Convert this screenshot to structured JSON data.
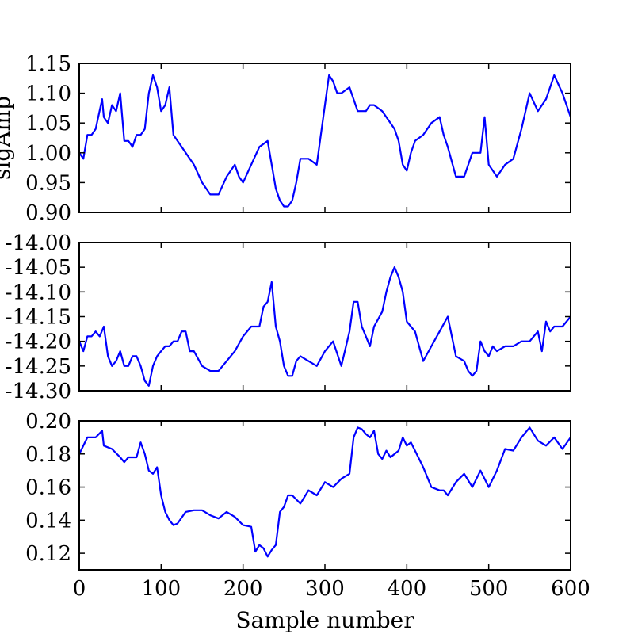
{
  "chart_data": [
    {
      "type": "line",
      "ylabel": "sigAmp",
      "xlabel": "",
      "xlim": [
        0,
        600
      ],
      "ylim": [
        0.9,
        1.15
      ],
      "x_ticks": [
        0,
        100,
        200,
        300,
        400,
        500,
        600
      ],
      "y_ticks": [
        "0.90",
        "0.95",
        "1.00",
        "1.05",
        "1.10",
        "1.15"
      ],
      "show_x_tick_labels": false,
      "line_color": "#0000ff",
      "series": [
        {
          "x": [
            0,
            5,
            10,
            15,
            20,
            28,
            30,
            35,
            40,
            45,
            50,
            55,
            60,
            65,
            70,
            75,
            80,
            85,
            90,
            95,
            100,
            105,
            110,
            115,
            120,
            125,
            130,
            140,
            150,
            160,
            170,
            180,
            190,
            195,
            200,
            210,
            220,
            230,
            240,
            245,
            250,
            255,
            260,
            265,
            270,
            275,
            280,
            290,
            300,
            305,
            310,
            315,
            320,
            330,
            340,
            350,
            355,
            360,
            370,
            380,
            385,
            390,
            395,
            400,
            405,
            410,
            420,
            430,
            440,
            445,
            450,
            460,
            470,
            480,
            490,
            495,
            500,
            510,
            520,
            530,
            540,
            550,
            560,
            570,
            580,
            590,
            600
          ],
          "y": [
            1.0,
            0.99,
            1.03,
            1.03,
            1.04,
            1.09,
            1.06,
            1.05,
            1.08,
            1.07,
            1.1,
            1.02,
            1.02,
            1.01,
            1.03,
            1.03,
            1.04,
            1.1,
            1.13,
            1.11,
            1.07,
            1.08,
            1.11,
            1.03,
            1.02,
            1.01,
            1.0,
            0.98,
            0.95,
            0.93,
            0.93,
            0.96,
            0.98,
            0.96,
            0.95,
            0.98,
            1.01,
            1.02,
            0.94,
            0.92,
            0.91,
            0.91,
            0.92,
            0.95,
            0.99,
            0.99,
            0.99,
            0.98,
            1.08,
            1.13,
            1.12,
            1.1,
            1.1,
            1.11,
            1.07,
            1.07,
            1.08,
            1.08,
            1.07,
            1.05,
            1.04,
            1.02,
            0.98,
            0.97,
            1.0,
            1.02,
            1.03,
            1.05,
            1.06,
            1.03,
            1.01,
            0.96,
            0.96,
            1.0,
            1.0,
            1.06,
            0.98,
            0.96,
            0.98,
            0.99,
            1.04,
            1.1,
            1.07,
            1.09,
            1.13,
            1.1,
            1.06
          ]
        }
      ]
    },
    {
      "type": "line",
      "ylabel": "",
      "xlabel": "",
      "xlim": [
        0,
        600
      ],
      "ylim": [
        -14.3,
        -14.0
      ],
      "x_ticks": [
        0,
        100,
        200,
        300,
        400,
        500,
        600
      ],
      "y_ticks": [
        "-14.30",
        "-14.25",
        "-14.20",
        "-14.15",
        "-14.10",
        "-14.05",
        "-14.00"
      ],
      "show_x_tick_labels": false,
      "line_color": "#0000ff",
      "series": [
        {
          "x": [
            0,
            5,
            10,
            15,
            20,
            25,
            30,
            35,
            40,
            45,
            50,
            55,
            60,
            65,
            70,
            75,
            80,
            85,
            90,
            95,
            100,
            105,
            110,
            115,
            120,
            125,
            130,
            135,
            140,
            150,
            160,
            170,
            180,
            190,
            200,
            210,
            220,
            225,
            230,
            235,
            240,
            245,
            250,
            255,
            260,
            265,
            270,
            280,
            290,
            300,
            310,
            320,
            330,
            335,
            340,
            345,
            350,
            355,
            360,
            370,
            375,
            380,
            385,
            390,
            395,
            400,
            405,
            410,
            420,
            430,
            440,
            450,
            460,
            470,
            475,
            480,
            485,
            490,
            495,
            500,
            505,
            510,
            520,
            530,
            540,
            550,
            560,
            565,
            570,
            575,
            580,
            590,
            600
          ],
          "y": [
            -14.2,
            -14.22,
            -14.19,
            -14.19,
            -14.18,
            -14.19,
            -14.17,
            -14.23,
            -14.25,
            -14.24,
            -14.22,
            -14.25,
            -14.25,
            -14.23,
            -14.23,
            -14.25,
            -14.28,
            -14.29,
            -14.25,
            -14.23,
            -14.22,
            -14.21,
            -14.21,
            -14.2,
            -14.2,
            -14.18,
            -14.18,
            -14.22,
            -14.22,
            -14.25,
            -14.26,
            -14.26,
            -14.24,
            -14.22,
            -14.19,
            -14.17,
            -14.17,
            -14.13,
            -14.12,
            -14.08,
            -14.17,
            -14.2,
            -14.25,
            -14.27,
            -14.27,
            -14.24,
            -14.23,
            -14.24,
            -14.25,
            -14.22,
            -14.2,
            -14.25,
            -14.18,
            -14.12,
            -14.12,
            -14.17,
            -14.19,
            -14.21,
            -14.17,
            -14.14,
            -14.1,
            -14.07,
            -14.05,
            -14.07,
            -14.1,
            -14.16,
            -14.17,
            -14.18,
            -14.24,
            -14.21,
            -14.18,
            -14.15,
            -14.23,
            -14.24,
            -14.26,
            -14.27,
            -14.26,
            -14.2,
            -14.22,
            -14.23,
            -14.21,
            -14.22,
            -14.21,
            -14.21,
            -14.2,
            -14.2,
            -14.18,
            -14.22,
            -14.16,
            -14.18,
            -14.17,
            -14.17,
            -14.15
          ]
        }
      ]
    },
    {
      "type": "line",
      "ylabel": "",
      "xlabel": "Sample number",
      "xlim": [
        0,
        600
      ],
      "ylim": [
        0.11,
        0.2
      ],
      "x_ticks": [
        0,
        100,
        200,
        300,
        400,
        500,
        600
      ],
      "y_ticks": [
        "0.12",
        "0.14",
        "0.16",
        "0.18",
        "0.20"
      ],
      "show_x_tick_labels": true,
      "line_color": "#0000ff",
      "series": [
        {
          "x": [
            0,
            5,
            10,
            20,
            28,
            30,
            40,
            50,
            55,
            60,
            70,
            75,
            80,
            85,
            90,
            95,
            100,
            105,
            110,
            115,
            120,
            130,
            140,
            150,
            160,
            170,
            180,
            190,
            200,
            210,
            215,
            220,
            225,
            230,
            235,
            240,
            245,
            250,
            255,
            260,
            270,
            280,
            290,
            300,
            310,
            320,
            330,
            335,
            340,
            345,
            350,
            355,
            360,
            365,
            370,
            375,
            380,
            390,
            395,
            400,
            405,
            410,
            420,
            430,
            440,
            445,
            450,
            460,
            470,
            480,
            490,
            495,
            500,
            510,
            520,
            530,
            540,
            550,
            560,
            570,
            580,
            590,
            600
          ],
          "y": [
            0.18,
            0.185,
            0.19,
            0.19,
            0.194,
            0.185,
            0.183,
            0.178,
            0.175,
            0.178,
            0.178,
            0.187,
            0.18,
            0.17,
            0.168,
            0.172,
            0.155,
            0.145,
            0.14,
            0.137,
            0.138,
            0.145,
            0.146,
            0.146,
            0.143,
            0.141,
            0.145,
            0.142,
            0.137,
            0.136,
            0.121,
            0.125,
            0.123,
            0.118,
            0.122,
            0.125,
            0.145,
            0.148,
            0.155,
            0.155,
            0.15,
            0.158,
            0.155,
            0.163,
            0.16,
            0.165,
            0.168,
            0.19,
            0.196,
            0.195,
            0.192,
            0.19,
            0.194,
            0.18,
            0.177,
            0.182,
            0.178,
            0.182,
            0.19,
            0.185,
            0.187,
            0.182,
            0.172,
            0.16,
            0.158,
            0.158,
            0.155,
            0.163,
            0.168,
            0.16,
            0.17,
            0.165,
            0.16,
            0.17,
            0.183,
            0.182,
            0.19,
            0.196,
            0.188,
            0.185,
            0.19,
            0.183,
            0.19
          ]
        }
      ]
    }
  ]
}
